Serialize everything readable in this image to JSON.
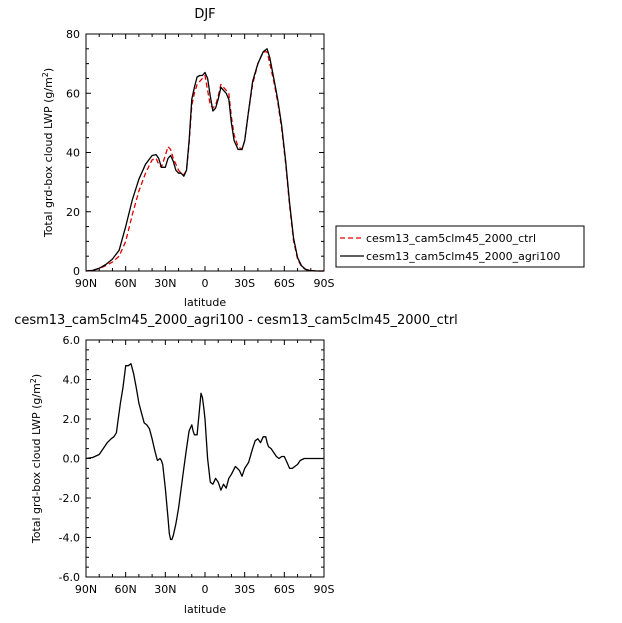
{
  "chart_data": [
    {
      "type": "line",
      "title": "DJF",
      "xlabel": "latitude",
      "ylabel": "Total grd-box cloud LWP (g/m",
      "ylabel_sup": "2",
      "ylabel_close": ")",
      "xlim": [
        90,
        -90
      ],
      "ylim": [
        0,
        80
      ],
      "x_ticks": [
        90,
        60,
        30,
        0,
        -30,
        -60,
        -90
      ],
      "x_tick_labels": [
        "90N",
        "60N",
        "30N",
        "0",
        "30S",
        "60S",
        "90S"
      ],
      "y_ticks": [
        0,
        20,
        40,
        60,
        80
      ],
      "y_tick_labels": [
        "0",
        "20",
        "40",
        "60",
        "80"
      ],
      "legend": "right",
      "series": [
        {
          "name": "cesm13_cam5clm45_2000_ctrl",
          "color": "#e00000",
          "dash": "dashed",
          "x": [
            90,
            85,
            80,
            75,
            70,
            65,
            60,
            55,
            50,
            45,
            40,
            37,
            35,
            33,
            30,
            28,
            26,
            24,
            22,
            20,
            18,
            16,
            14,
            12,
            10,
            8,
            6,
            4,
            2,
            0,
            -2,
            -4,
            -6,
            -8,
            -10,
            -12,
            -14,
            -16,
            -18,
            -20,
            -22,
            -25,
            -28,
            -30,
            -33,
            -36,
            -40,
            -44,
            -47,
            -49,
            -52,
            -55,
            -58,
            -61,
            -64,
            -67,
            -70,
            -73,
            -76,
            -80,
            -85,
            -90
          ],
          "y": [
            0,
            0.2,
            0.8,
            1.8,
            3,
            5,
            10,
            19,
            27,
            33,
            37.5,
            38,
            36,
            35,
            39,
            42,
            41,
            38,
            36,
            34,
            33,
            32.5,
            34,
            43,
            56,
            60,
            63,
            64,
            65,
            66,
            61,
            56,
            55,
            56,
            59,
            63,
            62,
            61,
            60,
            52,
            46,
            42,
            41,
            44,
            54,
            63,
            70,
            74,
            74,
            70,
            64,
            57,
            48,
            36,
            22,
            10,
            4,
            1.5,
            0.5,
            0.1,
            0,
            0
          ]
        },
        {
          "name": "cesm13_cam5clm45_2000_agri100",
          "color": "#000000",
          "dash": "solid",
          "x": [
            90,
            85,
            80,
            75,
            70,
            65,
            60,
            55,
            50,
            45,
            40,
            37,
            35,
            33,
            30,
            28,
            26,
            24,
            22,
            20,
            18,
            16,
            14,
            12,
            10,
            8,
            6,
            4,
            2,
            0,
            -2,
            -4,
            -6,
            -8,
            -10,
            -12,
            -14,
            -16,
            -18,
            -20,
            -22,
            -25,
            -28,
            -30,
            -33,
            -36,
            -40,
            -44,
            -47,
            -49,
            -52,
            -55,
            -58,
            -61,
            -64,
            -67,
            -70,
            -73,
            -76,
            -80,
            -85,
            -90
          ],
          "y": [
            0,
            0.2,
            0.9,
            2.2,
            4,
            7,
            15,
            24,
            31,
            36,
            39,
            39.3,
            38,
            35,
            35,
            38,
            39,
            37,
            34,
            33,
            33,
            32,
            34,
            44,
            58,
            62,
            65.5,
            66,
            66,
            67,
            65,
            59,
            54,
            55,
            58,
            62,
            61,
            60,
            58,
            50,
            44,
            41,
            41,
            44,
            54,
            64,
            70,
            74,
            75,
            72,
            65,
            58,
            49,
            37,
            23,
            11,
            4.5,
            1.8,
            0.6,
            0.1,
            0,
            0
          ]
        }
      ]
    },
    {
      "type": "line",
      "title": "cesm13_cam5clm45_2000_agri100 - cesm13_cam5clm45_2000_ctrl",
      "xlabel": "latitude",
      "ylabel": "Total grd-box cloud LWP (g/m",
      "ylabel_sup": "2",
      "ylabel_close": ")",
      "xlim": [
        90,
        -90
      ],
      "ylim": [
        -6,
        6
      ],
      "x_ticks": [
        90,
        60,
        30,
        0,
        -30,
        -60,
        -90
      ],
      "x_tick_labels": [
        "90N",
        "60N",
        "30N",
        "0",
        "30S",
        "60S",
        "90S"
      ],
      "y_ticks": [
        -6,
        -4,
        -2,
        0,
        2,
        4,
        6
      ],
      "y_tick_labels": [
        "-6.0",
        "-4.0",
        "-2.0",
        "0.0",
        "2.0",
        "4.0",
        "6.0"
      ],
      "series": [
        {
          "color": "#000000",
          "dash": "solid",
          "x": [
            90,
            85,
            80,
            77,
            74,
            71,
            69,
            67,
            66,
            64,
            62,
            60,
            58,
            56,
            54,
            52,
            50,
            48,
            46,
            44,
            42,
            40,
            38,
            36,
            34,
            33,
            32,
            30,
            28,
            27,
            26,
            25,
            24,
            22,
            20,
            18,
            16,
            14,
            12,
            10,
            9,
            8,
            6,
            4,
            3,
            2,
            1,
            0,
            -1,
            -2,
            -4,
            -6,
            -8,
            -10,
            -12,
            -14,
            -16,
            -18,
            -20,
            -23,
            -26,
            -28,
            -30,
            -33,
            -36,
            -38,
            -40,
            -42,
            -44,
            -46,
            -47,
            -48,
            -50,
            -52,
            -54,
            -56,
            -58,
            -60,
            -62,
            -64,
            -66,
            -68,
            -70,
            -72,
            -75,
            -80,
            -85,
            -90
          ],
          "y": [
            0,
            0.05,
            0.2,
            0.5,
            0.8,
            1.0,
            1.1,
            1.3,
            1.8,
            2.8,
            3.6,
            4.7,
            4.7,
            4.8,
            4.3,
            3.6,
            2.8,
            2.3,
            1.8,
            1.7,
            1.5,
            1.0,
            0.4,
            -0.1,
            0.0,
            -0.1,
            -0.3,
            -1.5,
            -3.0,
            -3.8,
            -4.1,
            -4.1,
            -3.9,
            -3.3,
            -2.5,
            -1.5,
            -0.5,
            0.5,
            1.4,
            1.7,
            1.4,
            1.2,
            1.2,
            2.6,
            3.3,
            3.1,
            2.6,
            2.0,
            1.0,
            0.0,
            -1.2,
            -1.3,
            -1.0,
            -1.2,
            -1.6,
            -1.3,
            -1.5,
            -1.0,
            -0.8,
            -0.4,
            -0.6,
            -0.9,
            -0.5,
            -0.2,
            0.5,
            0.9,
            1.0,
            0.8,
            1.1,
            1.1,
            0.8,
            0.6,
            0.5,
            0.3,
            0.1,
            0.0,
            0.1,
            0.1,
            -0.2,
            -0.5,
            -0.5,
            -0.4,
            -0.3,
            -0.1,
            0.0,
            0.0,
            0.0,
            0.0
          ]
        }
      ]
    }
  ]
}
